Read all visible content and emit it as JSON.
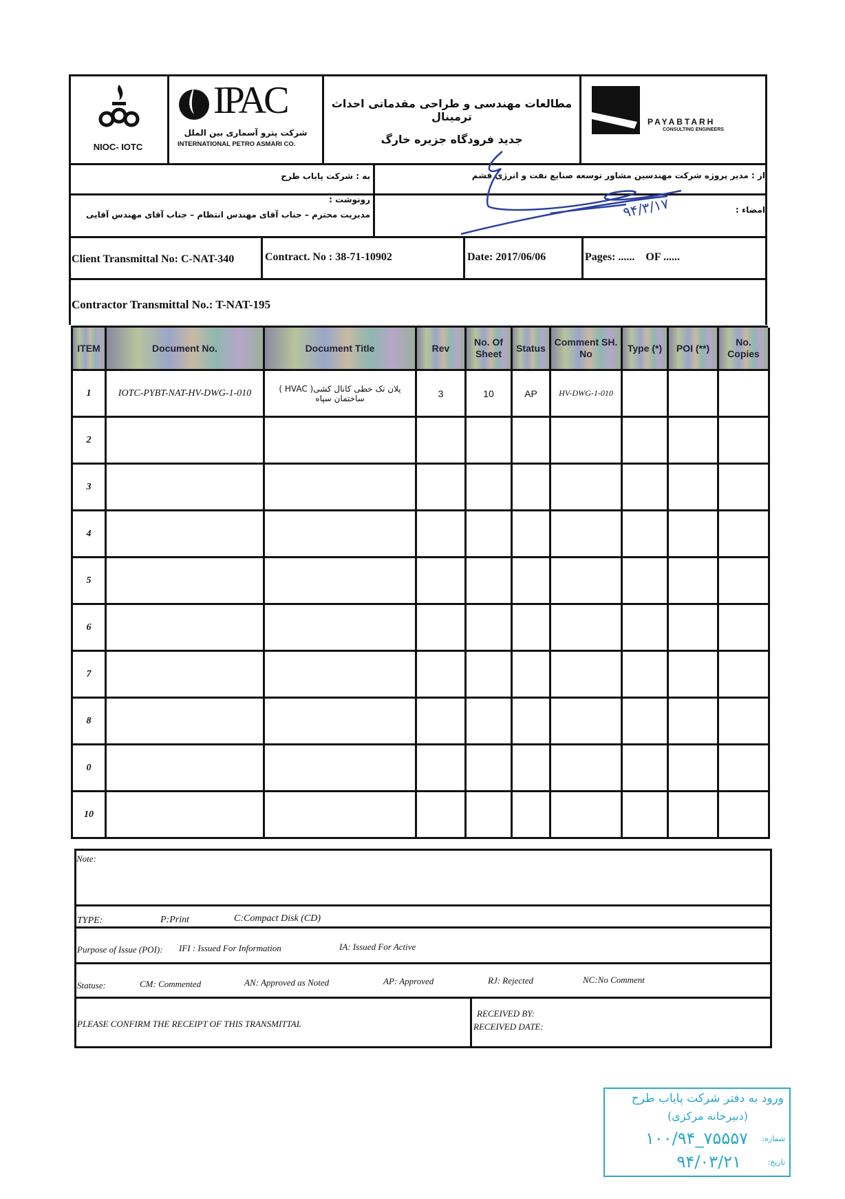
{
  "header": {
    "nioc_logo_text": "NIOC- IOTC",
    "ipac_logo_text": "IPAC",
    "ipac_fa": "شرکت پترو آسماری بین الملل",
    "ipac_en": "INTERNATIONAL PETRO ASMARI CO.",
    "project_title_line1": "مطالعات مهندسی و طراحی مقدماتی احداث ترمینال",
    "project_title_line2": "جدید فرودگاه جزیره خارگ",
    "payabtarh_name": "PAYABTARH",
    "payabtarh_sub": "CONSULTING ENGINEERS"
  },
  "to": "به : شرکت پایاب طرح",
  "from": "از : مدیر پروژه شرکت مهندسین مشاور توسعه صنایع نفت و انرژی قشم",
  "cc_label": "رونوشت :",
  "cc_value": "مدیریت محترم – جناب آقای مهندس انتظام – جناب آقای مهندس آقایی",
  "signature_label": "امضاء :",
  "signature_date": "۹۴/۳/۱۷",
  "client_transmittal": "Client  Transmittal  No: C-NAT-340",
  "contract_no": "Contract. No : 38-71-10902",
  "date": "Date: 2017/06/06",
  "pages": "Pages: ......    OF ......",
  "contractor_transmittal": "Contractor Transmittal No.:  T-NAT-195",
  "table": {
    "columns": [
      "ITEM",
      "Document No.",
      "Document Title",
      "Rev",
      "No. Of Sheet",
      "Status",
      "Comment SH. No",
      "Type (*)",
      "POI   (**)",
      "No. Copies"
    ],
    "rows": [
      {
        "item": "1",
        "doc_no": "IOTC-PYBT-NAT-HV-DWG-1-010",
        "title": "پلان تک خطی کانال کشی( HVAC ) ساختمان سپاه",
        "rev": "3",
        "sheets": "10",
        "status": "AP",
        "comment_sh": "HV-DWG-1-010",
        "type": "",
        "poi": "",
        "copies": ""
      },
      {
        "item": "2",
        "doc_no": "",
        "title": "",
        "rev": "",
        "sheets": "",
        "status": "",
        "comment_sh": "",
        "type": "",
        "poi": "",
        "copies": ""
      },
      {
        "item": "3",
        "doc_no": "",
        "title": "",
        "rev": "",
        "sheets": "",
        "status": "",
        "comment_sh": "",
        "type": "",
        "poi": "",
        "copies": ""
      },
      {
        "item": "4",
        "doc_no": "",
        "title": "",
        "rev": "",
        "sheets": "",
        "status": "",
        "comment_sh": "",
        "type": "",
        "poi": "",
        "copies": ""
      },
      {
        "item": "5",
        "doc_no": "",
        "title": "",
        "rev": "",
        "sheets": "",
        "status": "",
        "comment_sh": "",
        "type": "",
        "poi": "",
        "copies": ""
      },
      {
        "item": "6",
        "doc_no": "",
        "title": "",
        "rev": "",
        "sheets": "",
        "status": "",
        "comment_sh": "",
        "type": "",
        "poi": "",
        "copies": ""
      },
      {
        "item": "7",
        "doc_no": "",
        "title": "",
        "rev": "",
        "sheets": "",
        "status": "",
        "comment_sh": "",
        "type": "",
        "poi": "",
        "copies": ""
      },
      {
        "item": "8",
        "doc_no": "",
        "title": "",
        "rev": "",
        "sheets": "",
        "status": "",
        "comment_sh": "",
        "type": "",
        "poi": "",
        "copies": ""
      },
      {
        "item": "0",
        "doc_no": "",
        "title": "",
        "rev": "",
        "sheets": "",
        "status": "",
        "comment_sh": "",
        "type": "",
        "poi": "",
        "copies": ""
      },
      {
        "item": "10",
        "doc_no": "",
        "title": "",
        "rev": "",
        "sheets": "",
        "status": "",
        "comment_sh": "",
        "type": "",
        "poi": "",
        "copies": ""
      }
    ]
  },
  "legend": {
    "note_label": "Note:",
    "type_label": "TYPE:",
    "type_p": "P:Print",
    "type_c": "C:Compact Disk (CD)",
    "poi_label": "Purpose of  Issue (POI):",
    "poi_ifi": "IFI : Issued For Information",
    "poi_ia": "IA: Issued For Active",
    "status_label": "Statuse:",
    "status_cm": "CM: Commented",
    "status_an": "AN: Approved as Noted",
    "status_ap": "AP: Approved",
    "status_rj": "RJ: Rejected",
    "status_nc": "NC:No Comment",
    "confirm": "PLEASE CONFIRM THE RECEIPT OF THIS TRANSMITTAL",
    "received_by": "RECEIVED BY:",
    "received_date": "RECEIVED DATE:"
  },
  "stamp": {
    "line1": "ورود به دفتر شرکت پایاب طرح",
    "line2": "(دبیرخانه مرکزی)",
    "number_label": "شماره:",
    "number_value": "۱۰۰/۹۴_۷۵۵۵۷",
    "date_label": "تاریخ:",
    "date_value": "۹۴/۰۳/۲۱",
    "color": "#2aa8c8"
  },
  "colors": {
    "ink": "#111111",
    "signature": "#2a3fa0"
  }
}
